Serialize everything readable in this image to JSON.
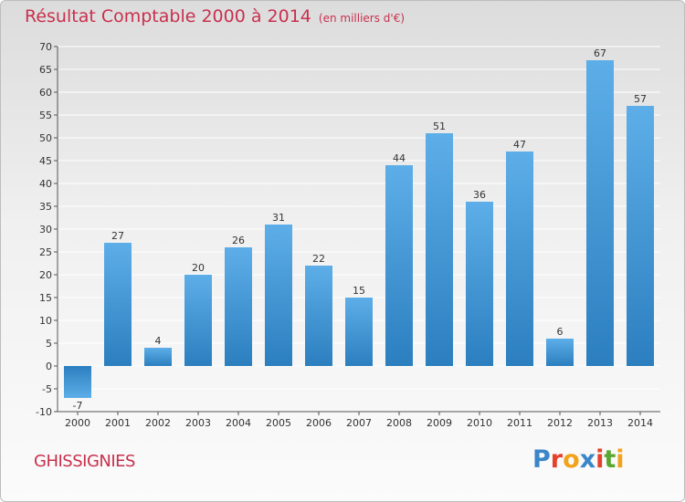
{
  "header": {
    "title": "Résultat Comptable 2000 à 2014",
    "unit": "(en milliers d'€)"
  },
  "place_name": "GHISSIGNIES",
  "logo": {
    "text": "Proxiti",
    "letter_colors": [
      "#3a86c8",
      "#e5402b",
      "#f2a31c",
      "#3a86c8",
      "#e5402b",
      "#5aa832",
      "#f2a31c"
    ]
  },
  "colors": {
    "title": "#c8304d",
    "bar_light": "#5daee8",
    "bar_dark": "#2c7fbf",
    "grid": "#ffffff",
    "axis": "#555555"
  },
  "chart_data": {
    "type": "bar",
    "title": "Résultat Comptable 2000 à 2014",
    "subtitle": "(en milliers d'€)",
    "xlabel": "",
    "ylabel": "",
    "categories": [
      "2000",
      "2001",
      "2002",
      "2003",
      "2004",
      "2005",
      "2006",
      "2007",
      "2008",
      "2009",
      "2010",
      "2011",
      "2012",
      "2013",
      "2014"
    ],
    "values": [
      -7,
      27,
      4,
      20,
      26,
      31,
      22,
      15,
      44,
      51,
      36,
      47,
      6,
      67,
      57
    ],
    "ylim": [
      -10,
      70
    ],
    "yticks": [
      -10,
      -5,
      0,
      5,
      10,
      15,
      20,
      25,
      30,
      35,
      40,
      45,
      50,
      55,
      60,
      65,
      70
    ],
    "grid": true,
    "data_labels": true,
    "legend": "none"
  }
}
